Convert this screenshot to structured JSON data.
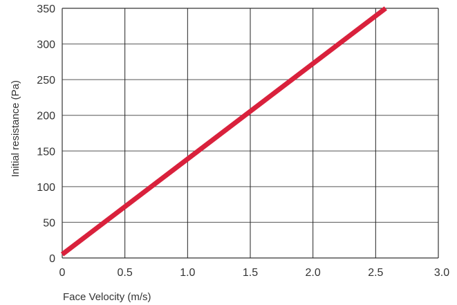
{
  "chart_data": {
    "type": "line",
    "title": "",
    "xlabel": "Face Velocity (m/s)",
    "ylabel": "Initial resistance (Pa)",
    "xlim": [
      0,
      3.0
    ],
    "ylim": [
      0,
      350
    ],
    "xticks": [
      "0",
      "0.5",
      "1.0",
      "1.5",
      "2.0",
      "2.5",
      "3.0"
    ],
    "yticks": [
      "0",
      "50",
      "100",
      "150",
      "200",
      "250",
      "300",
      "350"
    ],
    "grid": true,
    "series": [
      {
        "color": "#d9213c",
        "x": [
          0,
          2.58
        ],
        "y": [
          5,
          350
        ]
      }
    ]
  }
}
